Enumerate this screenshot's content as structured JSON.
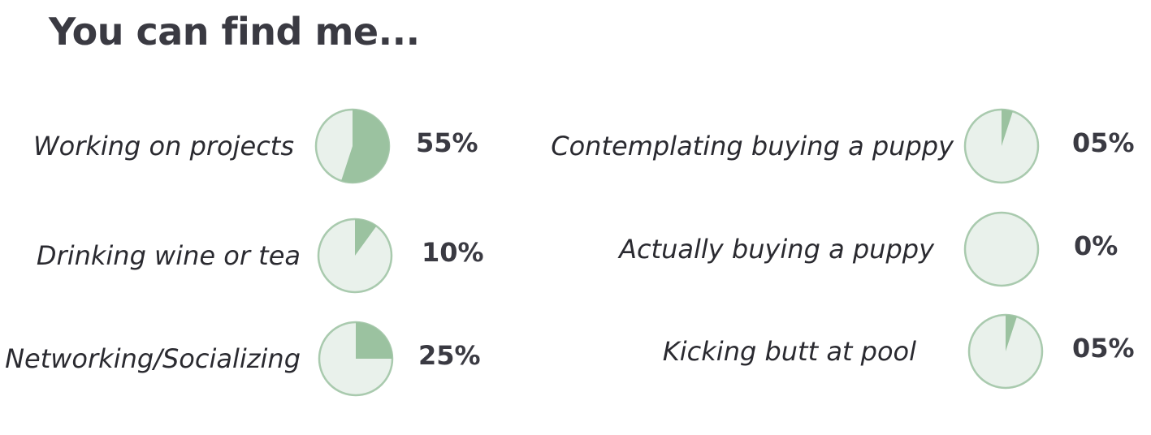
{
  "page": {
    "title": "You can find me..."
  },
  "colors": {
    "pie_fill": "#9bc2a0",
    "pie_background": "#e9f1eb",
    "pie_border": "#a9caae",
    "text": "#3a3a42"
  },
  "chart_data": {
    "type": "pie",
    "items": [
      {
        "label": "Working on projects",
        "value": 55,
        "percent_label": "55%"
      },
      {
        "label": "Drinking wine or tea",
        "value": 10,
        "percent_label": "10%"
      },
      {
        "label": "Networking/Socializing",
        "value": 25,
        "percent_label": "25%"
      },
      {
        "label": "Contemplating buying a puppy",
        "value": 5,
        "percent_label": "05%"
      },
      {
        "label": "Actually buying a puppy",
        "value": 0,
        "percent_label": "0%"
      },
      {
        "label": "Kicking butt at pool",
        "value": 5,
        "percent_label": "05%"
      }
    ]
  }
}
